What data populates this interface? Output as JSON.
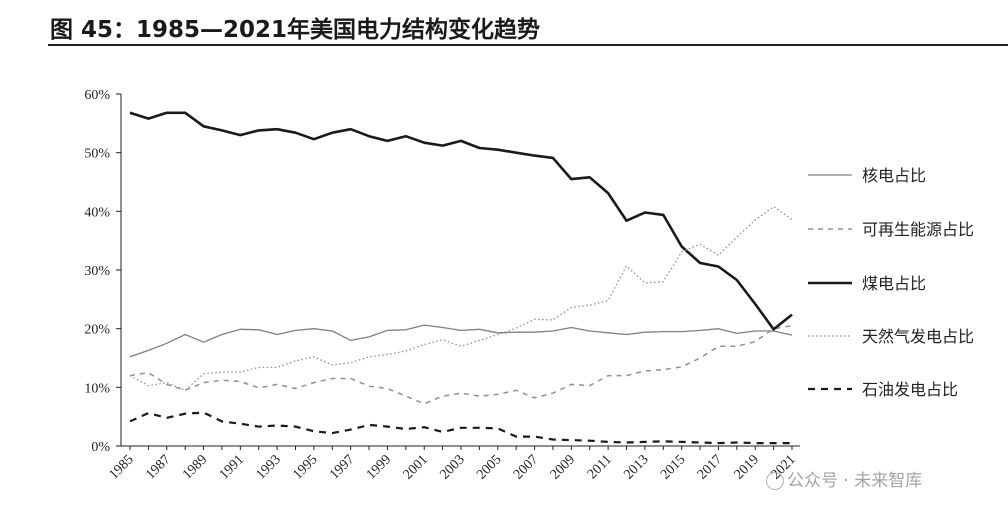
{
  "title": "图 45：1985—2021年美国电力结构变化趋势",
  "watermark": "公众号 · 未来智库",
  "chart_data": {
    "type": "line",
    "title": "图 45：1985—2021年美国电力结构变化趋势",
    "xlabel": "",
    "ylabel": "",
    "x": [
      1985,
      1986,
      1987,
      1988,
      1989,
      1990,
      1991,
      1992,
      1993,
      1994,
      1995,
      1996,
      1997,
      1998,
      1999,
      2000,
      2001,
      2002,
      2003,
      2004,
      2005,
      2006,
      2007,
      2008,
      2009,
      2010,
      2011,
      2012,
      2013,
      2014,
      2015,
      2016,
      2017,
      2018,
      2019,
      2020,
      2021
    ],
    "xticks": [
      "1985",
      "1987",
      "1989",
      "1991",
      "1993",
      "1995",
      "1997",
      "1999",
      "2001",
      "2003",
      "2005",
      "2007",
      "2009",
      "2011",
      "2013",
      "2015",
      "2017",
      "2019",
      "2021"
    ],
    "ylim": [
      0,
      60
    ],
    "yticks": [
      "0%",
      "10%",
      "20%",
      "30%",
      "40%",
      "50%",
      "60%"
    ],
    "legend_position": "right",
    "series": [
      {
        "name": "核电占比",
        "style": "thin-solid",
        "color": "#808080",
        "values": [
          15.2,
          16.3,
          17.5,
          19.0,
          17.7,
          19.0,
          19.9,
          19.8,
          19.0,
          19.7,
          20.0,
          19.6,
          18.0,
          18.6,
          19.7,
          19.8,
          20.6,
          20.2,
          19.7,
          19.9,
          19.3,
          19.4,
          19.4,
          19.6,
          20.2,
          19.6,
          19.3,
          19.0,
          19.4,
          19.5,
          19.5,
          19.7,
          20.0,
          19.2,
          19.6,
          19.6,
          18.9
        ]
      },
      {
        "name": "可再生能源占比",
        "style": "dashed",
        "color": "#909090",
        "values": [
          12.0,
          12.5,
          10.5,
          9.5,
          10.8,
          11.2,
          11.0,
          9.9,
          10.5,
          9.8,
          10.8,
          11.5,
          11.5,
          10.2,
          9.8,
          8.5,
          7.2,
          8.5,
          9.0,
          8.5,
          8.8,
          9.5,
          8.2,
          9.0,
          10.5,
          10.3,
          12.0,
          12.0,
          12.8,
          13.0,
          13.5,
          15.0,
          17.0,
          17.0,
          17.8,
          20.0,
          20.5
        ]
      },
      {
        "name": "煤电占比",
        "style": "thick-solid",
        "color": "#1a1a1a",
        "values": [
          56.8,
          55.8,
          56.8,
          56.8,
          54.5,
          53.8,
          53.0,
          53.8,
          54.0,
          53.4,
          52.3,
          53.4,
          54.0,
          52.8,
          52.0,
          52.8,
          51.7,
          51.2,
          52.0,
          50.8,
          50.5,
          50.0,
          49.5,
          49.1,
          45.5,
          45.8,
          43.1,
          38.4,
          39.8,
          39.4,
          34.0,
          31.2,
          30.6,
          28.3,
          24.2,
          19.9,
          22.4
        ]
      },
      {
        "name": "天然气发电占比",
        "style": "dotted",
        "color": "#909090",
        "values": [
          12.0,
          10.3,
          10.8,
          9.5,
          12.3,
          12.6,
          12.6,
          13.4,
          13.4,
          14.5,
          15.2,
          13.8,
          14.2,
          15.2,
          15.6,
          16.2,
          17.3,
          18.1,
          17.0,
          18.0,
          19.0,
          20.1,
          21.6,
          21.5,
          23.6,
          24.0,
          24.8,
          30.7,
          27.8,
          28.0,
          33.1,
          34.4,
          32.5,
          35.6,
          38.5,
          40.8,
          38.6
        ]
      },
      {
        "name": "石油发电占比",
        "style": "long-dashed",
        "color": "#1a1a1a",
        "values": [
          4.2,
          5.6,
          4.8,
          5.5,
          5.7,
          4.2,
          3.8,
          3.3,
          3.5,
          3.3,
          2.5,
          2.2,
          2.8,
          3.6,
          3.3,
          2.9,
          3.2,
          2.4,
          3.1,
          3.1,
          3.0,
          1.6,
          1.6,
          1.1,
          1.0,
          0.9,
          0.7,
          0.6,
          0.7,
          0.8,
          0.7,
          0.6,
          0.5,
          0.6,
          0.5,
          0.5,
          0.5
        ]
      }
    ]
  }
}
